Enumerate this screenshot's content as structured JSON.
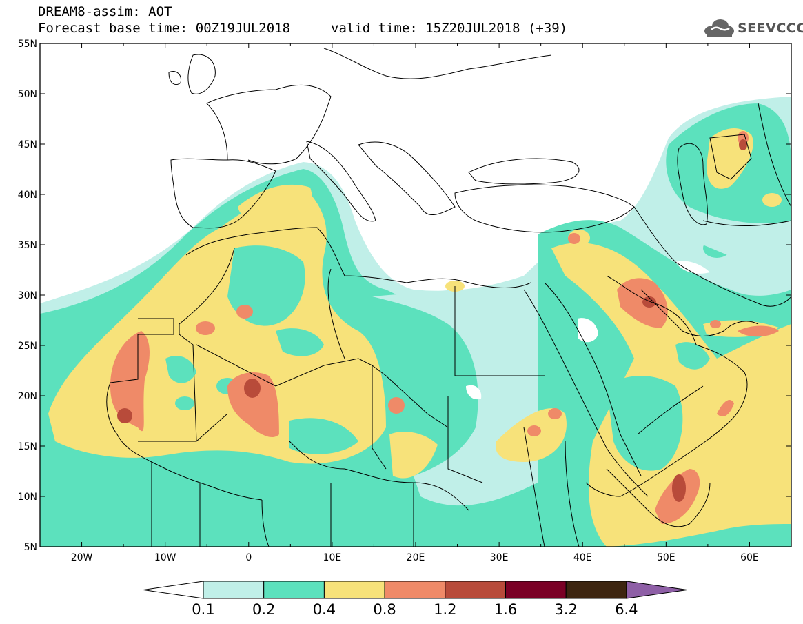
{
  "header": {
    "title": "DREAM8-assim: AOT",
    "base_time": "Forecast base time: 00Z19JUL2018",
    "valid_time": "valid time: 15Z20JUL2018 (+39)",
    "logo_text": "SEEVCCC"
  },
  "map": {
    "lon_range": [
      -25,
      65
    ],
    "lat_range": [
      5,
      55
    ],
    "lat_labels": [
      "55N",
      "50N",
      "45N",
      "40N",
      "35N",
      "30N",
      "25N",
      "20N",
      "15N",
      "10N",
      "5N"
    ],
    "lon_labels": [
      "20W",
      "10W",
      "0",
      "10E",
      "20E",
      "30E",
      "40E",
      "50E",
      "60E"
    ],
    "variable": "AOT"
  },
  "legend": {
    "levels": [
      "0.1",
      "0.2",
      "0.4",
      "0.8",
      "1.2",
      "1.6",
      "3.2",
      "6.4"
    ],
    "colors": [
      "#c0efe8",
      "#5ce1bd",
      "#f7e27a",
      "#ef8a68",
      "#b84b3a",
      "#7a0025",
      "#3d2510",
      "#8e5fa6"
    ]
  },
  "colors": {
    "ocean": "#ffffff",
    "border": "#000000"
  }
}
